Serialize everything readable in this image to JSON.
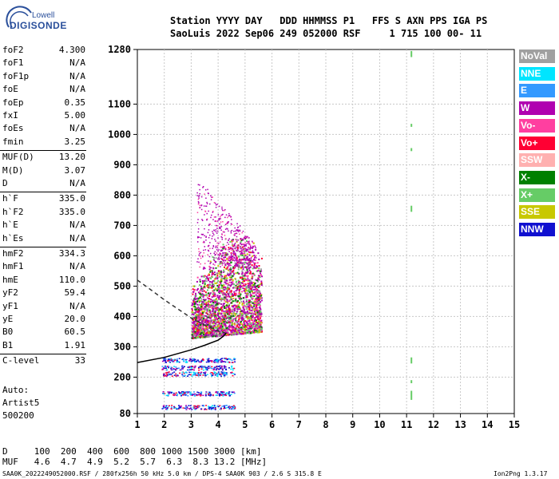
{
  "logo": {
    "top": "Lowell",
    "bottom": "DIGISONDE"
  },
  "header": {
    "line1": "Station YYYY DAY   DDD HHMMSS P1   FFS S AXN PPS IGA PS",
    "line2": "SaoLuis 2022 Sep06 249 052000 RSF     1 715 100 00- 11"
  },
  "params": [
    {
      "k": "foF2",
      "v": "4.300"
    },
    {
      "k": "foF1",
      "v": "N/A"
    },
    {
      "k": "foF1p",
      "v": "N/A"
    },
    {
      "k": "foE",
      "v": "N/A"
    },
    {
      "k": "foEp",
      "v": "0.35"
    },
    {
      "k": "fxI",
      "v": "5.00"
    },
    {
      "k": "foEs",
      "v": "N/A"
    },
    {
      "k": "fmin",
      "v": "3.25"
    },
    {
      "k": "MUF(D)",
      "v": "13.20"
    },
    {
      "k": "M(D)",
      "v": "3.07"
    },
    {
      "k": "D",
      "v": "N/A"
    },
    {
      "k": "h`F",
      "v": "335.0"
    },
    {
      "k": "h`F2",
      "v": "335.0"
    },
    {
      "k": "h`E",
      "v": "N/A"
    },
    {
      "k": "h`Es",
      "v": "N/A"
    },
    {
      "k": "hmF2",
      "v": "334.3"
    },
    {
      "k": "hmF1",
      "v": "N/A"
    },
    {
      "k": "hmE",
      "v": "110.0"
    },
    {
      "k": "yF2",
      "v": "59.4"
    },
    {
      "k": "yF1",
      "v": "N/A"
    },
    {
      "k": "yE",
      "v": "20.0"
    },
    {
      "k": "B0",
      "v": "60.5"
    },
    {
      "k": "B1",
      "v": "1.91"
    },
    {
      "k": "C-level",
      "v": "33"
    }
  ],
  "auto": {
    "line1": "Auto:",
    "line2": "Artist5",
    "line3": "500200"
  },
  "legend": [
    {
      "label": "NoVal",
      "bg": "#a0a0a0",
      "fg": "#ffffff"
    },
    {
      "label": "NNE",
      "bg": "#00e5ff",
      "fg": "#ffffff"
    },
    {
      "label": "E",
      "bg": "#3399ff",
      "fg": "#ffffff"
    },
    {
      "label": "W",
      "bg": "#b000b0",
      "fg": "#ffffff"
    },
    {
      "label": "Vo-",
      "bg": "#ff3fa0",
      "fg": "#ffffff"
    },
    {
      "label": "Vo+",
      "bg": "#ff0033",
      "fg": "#ffffff"
    },
    {
      "label": "SSW",
      "bg": "#ffb0b0",
      "fg": "#ffffff"
    },
    {
      "label": "X-",
      "bg": "#008000",
      "fg": "#ffffff"
    },
    {
      "label": "X+",
      "bg": "#66cc66",
      "fg": "#ffffff"
    },
    {
      "label": "SSE",
      "bg": "#c8c800",
      "fg": "#ffffff"
    },
    {
      "label": "NNW",
      "bg": "#1010d0",
      "fg": "#ffffff"
    }
  ],
  "footer": {
    "d_line": "D     100  200  400  600  800 1000 1500 3000 [km]",
    "muf_line": "MUF   4.6  4.7  4.9  5.2  5.7  6.3  8.3 13.2 [MHz]",
    "file_line": "SAA0K_2022249052000.RSF / 280fx256h 50 kHz 5.0 km / DPS-4 SAA0K 903 / 2.6 S 315.8 E",
    "version": "Ion2Png 1.3.17"
  },
  "chart_data": {
    "type": "scatter",
    "x_ticks": [
      1,
      2,
      3,
      4,
      5,
      6,
      7,
      8,
      9,
      10,
      11,
      12,
      13,
      14,
      15
    ],
    "y_ticks": [
      80,
      200,
      300,
      400,
      500,
      600,
      700,
      800,
      900,
      1000,
      1100,
      1280
    ],
    "xlim": [
      1,
      15
    ],
    "ylim": [
      80,
      1280
    ],
    "grid": true,
    "trace_solid": [
      [
        1.0,
        248
      ],
      [
        2.0,
        265
      ],
      [
        3.0,
        290
      ],
      [
        3.5,
        305
      ],
      [
        4.0,
        322
      ],
      [
        4.2,
        335
      ],
      [
        4.3,
        345
      ]
    ],
    "trace_dashed": [
      [
        1.0,
        520
      ],
      [
        1.5,
        488
      ],
      [
        2.0,
        455
      ],
      [
        2.5,
        425
      ],
      [
        3.0,
        395
      ],
      [
        3.5,
        372
      ],
      [
        4.0,
        352
      ],
      [
        4.3,
        345
      ]
    ]
  }
}
